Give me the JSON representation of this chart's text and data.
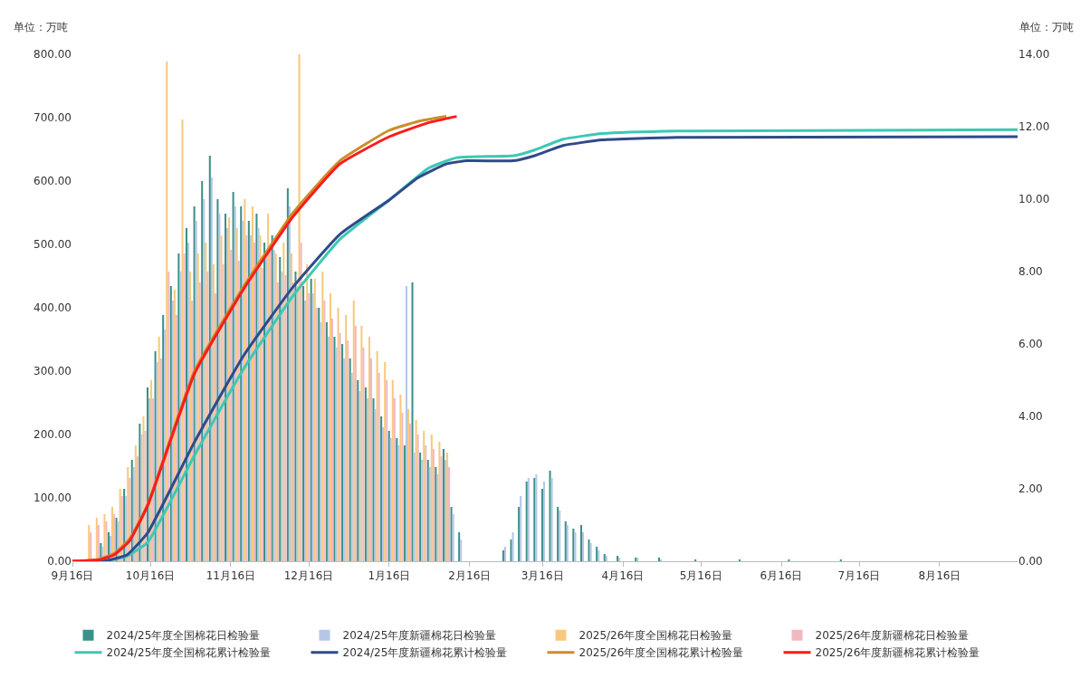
{
  "chart_data": {
    "type": "bar",
    "ylabel": "单位：万吨",
    "y2label": "单位：万吨",
    "legend": "bottom",
    "grid": false,
    "xlim": [
      "2025-09-16",
      "2026-09-15"
    ],
    "xticks": [
      {
        "value": "2025-09-16",
        "label": "9月16日"
      },
      {
        "value": "2025-10-16",
        "label": "10月16日"
      },
      {
        "value": "2025-11-16",
        "label": "11月16日"
      },
      {
        "value": "2025-12-16",
        "label": "12月16日"
      },
      {
        "value": "2026-01-16",
        "label": "1月16日"
      },
      {
        "value": "2026-02-16",
        "label": "2月16日"
      },
      {
        "value": "2026-03-16",
        "label": "3月16日"
      },
      {
        "value": "2026-04-16",
        "label": "4月16日"
      },
      {
        "value": "2026-05-16",
        "label": "5月16日"
      },
      {
        "value": "2026-06-16",
        "label": "6月16日"
      },
      {
        "value": "2026-07-16",
        "label": "7月16日"
      },
      {
        "value": "2026-08-16",
        "label": "8月16日"
      }
    ],
    "ylim": [
      0,
      800
    ],
    "yticks": [
      {
        "value": 0,
        "label": "0.00"
      },
      {
        "value": 100,
        "label": "100.00"
      },
      {
        "value": 200,
        "label": "200.00"
      },
      {
        "value": 300,
        "label": "300.00"
      },
      {
        "value": 400,
        "label": "400.00"
      },
      {
        "value": 500,
        "label": "500.00"
      },
      {
        "value": 600,
        "label": "600.00"
      },
      {
        "value": 700,
        "label": "700.00"
      },
      {
        "value": 800,
        "label": "800.00"
      }
    ],
    "y2lim": [
      0,
      14
    ],
    "y2ticks": [
      {
        "value": 0,
        "label": "0.00"
      },
      {
        "value": 2,
        "label": "2.00"
      },
      {
        "value": 4,
        "label": "4.00"
      },
      {
        "value": 6,
        "label": "6.00"
      },
      {
        "value": 8,
        "label": "8.00"
      },
      {
        "value": 10,
        "label": "10.00"
      },
      {
        "value": 12,
        "label": "12.00"
      },
      {
        "value": 14,
        "label": "14.00"
      }
    ],
    "series": [
      {
        "name": "2024/25年度全国棉花日检验量",
        "axis": "y2",
        "color": "#3a9188",
        "x": [
          "2025-09-28",
          "2025-10-01",
          "2025-10-04",
          "2025-10-07",
          "2025-10-10",
          "2025-10-13",
          "2025-10-16",
          "2025-10-19",
          "2025-10-22",
          "2025-10-25",
          "2025-10-28",
          "2025-10-31",
          "2025-11-03",
          "2025-11-06",
          "2025-11-09",
          "2025-11-12",
          "2025-11-15",
          "2025-11-18",
          "2025-11-21",
          "2025-11-24",
          "2025-11-27",
          "2025-11-30",
          "2025-12-03",
          "2025-12-06",
          "2025-12-09",
          "2025-12-12",
          "2025-12-15",
          "2025-12-18",
          "2025-12-21",
          "2025-12-24",
          "2025-12-27",
          "2025-12-30",
          "2026-01-02",
          "2026-01-05",
          "2026-01-08",
          "2026-01-11",
          "2026-01-14",
          "2026-01-17",
          "2026-01-20",
          "2026-01-23",
          "2026-01-26",
          "2026-01-29",
          "2026-02-01",
          "2026-02-04",
          "2026-02-07",
          "2026-02-10",
          "2026-02-13",
          "2026-03-02",
          "2026-03-05",
          "2026-03-08",
          "2026-03-11",
          "2026-03-14",
          "2026-03-17",
          "2026-03-20",
          "2026-03-23",
          "2026-03-26",
          "2026-03-29",
          "2026-04-01",
          "2026-04-04",
          "2026-04-07",
          "2026-04-10",
          "2026-04-15",
          "2026-04-22",
          "2026-05-01",
          "2026-05-15",
          "2026-06-01",
          "2026-06-20",
          "2026-07-10"
        ],
        "values": [
          0.5,
          0.8,
          1.2,
          2.0,
          2.8,
          3.8,
          4.8,
          5.8,
          6.8,
          7.6,
          8.5,
          9.2,
          9.8,
          10.5,
          11.2,
          10.0,
          9.6,
          10.2,
          9.8,
          9.4,
          9.6,
          8.8,
          9.0,
          8.4,
          10.3,
          8.0,
          7.6,
          7.8,
          7.0,
          6.6,
          6.2,
          6.0,
          5.6,
          5.0,
          4.8,
          4.5,
          4.0,
          3.6,
          3.4,
          3.2,
          7.7,
          3.0,
          2.8,
          2.6,
          3.1,
          1.5,
          0.8,
          0.3,
          0.6,
          1.5,
          2.2,
          2.3,
          2.0,
          2.5,
          1.5,
          1.1,
          0.9,
          1.0,
          0.6,
          0.4,
          0.2,
          0.15,
          0.1,
          0.1,
          0.05,
          0.05,
          0.03,
          0.03
        ]
      },
      {
        "name": "2024/25年度新疆棉花日检验量",
        "axis": "y2",
        "color": "#b4c7e7",
        "x": [
          "2025-09-28",
          "2025-10-01",
          "2025-10-04",
          "2025-10-07",
          "2025-10-10",
          "2025-10-13",
          "2025-10-16",
          "2025-10-19",
          "2025-10-22",
          "2025-10-25",
          "2025-10-28",
          "2025-10-31",
          "2025-11-03",
          "2025-11-06",
          "2025-11-09",
          "2025-11-12",
          "2025-11-15",
          "2025-11-18",
          "2025-11-21",
          "2025-11-24",
          "2025-11-27",
          "2025-11-30",
          "2025-12-03",
          "2025-12-06",
          "2025-12-09",
          "2025-12-12",
          "2025-12-15",
          "2025-12-18",
          "2025-12-21",
          "2025-12-24",
          "2025-12-27",
          "2025-12-30",
          "2026-01-02",
          "2026-01-05",
          "2026-01-08",
          "2026-01-11",
          "2026-01-14",
          "2026-01-17",
          "2026-01-20",
          "2026-01-23",
          "2026-01-26",
          "2026-01-29",
          "2026-02-01",
          "2026-02-04",
          "2026-02-07",
          "2026-02-10",
          "2026-02-13",
          "2026-03-02",
          "2026-03-05",
          "2026-03-08",
          "2026-03-11",
          "2026-03-14",
          "2026-03-17",
          "2026-03-20",
          "2026-03-23",
          "2026-03-26",
          "2026-03-29",
          "2026-04-01",
          "2026-04-04",
          "2026-04-07",
          "2026-04-10",
          "2026-04-15",
          "2026-04-22",
          "2026-05-01"
        ],
        "values": [
          0.4,
          0.7,
          1.1,
          1.8,
          2.6,
          3.5,
          4.5,
          5.5,
          6.4,
          7.2,
          8.0,
          8.8,
          9.4,
          10.0,
          10.6,
          9.6,
          9.2,
          9.8,
          9.4,
          9.0,
          9.2,
          8.4,
          8.6,
          8.0,
          9.8,
          7.6,
          7.2,
          7.4,
          6.6,
          6.2,
          5.9,
          5.6,
          5.2,
          4.7,
          4.5,
          4.2,
          3.7,
          3.4,
          3.2,
          7.6,
          3.0,
          2.8,
          2.6,
          2.4,
          2.8,
          1.3,
          0.6,
          0.4,
          0.8,
          1.8,
          2.3,
          2.4,
          2.2,
          2.3,
          1.4,
          1.0,
          0.8,
          0.8,
          0.5,
          0.3,
          0.15,
          0.1,
          0.1,
          0.05
        ]
      },
      {
        "name": "2025/26年度全国棉花日检验量",
        "axis": "y2",
        "color": "#f7c97c",
        "x": [
          "2025-09-22",
          "2025-09-25",
          "2025-09-28",
          "2025-10-01",
          "2025-10-04",
          "2025-10-07",
          "2025-10-10",
          "2025-10-13",
          "2025-10-16",
          "2025-10-19",
          "2025-10-22",
          "2025-10-25",
          "2025-10-28",
          "2025-10-31",
          "2025-11-03",
          "2025-11-06",
          "2025-11-09",
          "2025-11-12",
          "2025-11-15",
          "2025-11-18",
          "2025-11-21",
          "2025-11-24",
          "2025-11-27",
          "2025-11-30",
          "2025-12-03",
          "2025-12-06",
          "2025-12-09",
          "2025-12-12",
          "2025-12-15",
          "2025-12-18",
          "2025-12-21",
          "2025-12-24",
          "2025-12-27",
          "2025-12-30",
          "2026-01-02",
          "2026-01-05",
          "2026-01-08",
          "2026-01-11",
          "2026-01-14",
          "2026-01-17",
          "2026-01-20",
          "2026-01-23",
          "2026-01-26",
          "2026-01-29",
          "2026-02-01",
          "2026-02-04",
          "2026-02-07"
        ],
        "values": [
          1.0,
          1.2,
          1.3,
          1.5,
          2.0,
          2.6,
          3.2,
          4.0,
          5.0,
          6.2,
          13.8,
          7.5,
          12.2,
          8.0,
          8.5,
          8.8,
          8.2,
          9.0,
          9.5,
          9.2,
          10.0,
          9.8,
          9.0,
          9.6,
          8.5,
          8.8,
          8.5,
          14.0,
          8.2,
          7.8,
          8.0,
          7.4,
          7.0,
          6.8,
          7.2,
          6.5,
          6.2,
          5.8,
          5.5,
          5.0,
          4.6,
          4.2,
          3.9,
          3.6,
          3.5,
          3.3,
          3.0
        ]
      },
      {
        "name": "2025/26年度新疆棉花日检验量",
        "axis": "y2",
        "color": "#f2b8c0",
        "x": [
          "2025-09-22",
          "2025-09-25",
          "2025-09-28",
          "2025-10-01",
          "2025-10-04",
          "2025-10-07",
          "2025-10-10",
          "2025-10-13",
          "2025-10-16",
          "2025-10-19",
          "2025-10-22",
          "2025-10-25",
          "2025-10-28",
          "2025-10-31",
          "2025-11-03",
          "2025-11-06",
          "2025-11-09",
          "2025-11-12",
          "2025-11-15",
          "2025-11-18",
          "2025-11-21",
          "2025-11-24",
          "2025-11-27",
          "2025-11-30",
          "2025-12-03",
          "2025-12-06",
          "2025-12-09",
          "2025-12-12",
          "2025-12-15",
          "2025-12-18",
          "2025-12-21",
          "2025-12-24",
          "2025-12-27",
          "2025-12-30",
          "2026-01-02",
          "2026-01-05",
          "2026-01-08",
          "2026-01-11",
          "2026-01-14",
          "2026-01-17",
          "2026-01-20",
          "2026-01-23",
          "2026-01-26",
          "2026-01-29",
          "2026-02-01",
          "2026-02-04",
          "2026-02-07"
        ],
        "values": [
          0.8,
          1.0,
          1.1,
          1.3,
          1.8,
          2.3,
          2.9,
          3.6,
          4.5,
          5.6,
          8.0,
          6.8,
          8.5,
          7.2,
          7.7,
          8.0,
          7.4,
          8.2,
          8.6,
          8.3,
          9.0,
          8.8,
          8.1,
          8.6,
          7.7,
          7.9,
          7.7,
          8.8,
          7.4,
          7.0,
          7.2,
          6.7,
          6.3,
          6.1,
          6.5,
          5.9,
          5.6,
          5.2,
          5.0,
          4.5,
          4.1,
          3.8,
          3.5,
          3.2,
          3.1,
          2.9,
          2.6
        ]
      },
      {
        "name": "2024/25年度全国棉花累计检验量",
        "type": "line",
        "color": "#3cc8b4",
        "x": [
          "2025-09-16",
          "2025-09-28",
          "2025-10-07",
          "2025-10-15",
          "2025-11-02",
          "2025-11-21",
          "2025-12-10",
          "2025-12-28",
          "2026-01-16",
          "2026-01-31",
          "2026-02-11",
          "2026-03-05",
          "2026-03-13",
          "2026-03-24",
          "2026-04-08",
          "2026-05-07",
          "2026-09-15"
        ],
        "values": [
          0,
          0,
          8,
          30,
          167,
          304,
          419,
          508,
          570,
          620,
          637,
          640,
          649,
          666,
          675,
          679,
          681
        ]
      },
      {
        "name": "2024/25年度新疆棉花累计检验量",
        "type": "line",
        "color": "#2f4a8a",
        "x": [
          "2025-09-16",
          "2025-09-28",
          "2025-10-07",
          "2025-10-15",
          "2025-11-02",
          "2025-11-21",
          "2025-12-10",
          "2025-12-28",
          "2026-01-16",
          "2026-01-27",
          "2026-02-07",
          "2026-02-15",
          "2026-03-05",
          "2026-03-13",
          "2026-03-24",
          "2026-04-08",
          "2026-05-07",
          "2026-09-15"
        ],
        "values": [
          0,
          0,
          10,
          45,
          188,
          325,
          433,
          516,
          570,
          605,
          627,
          632,
          632,
          640,
          656,
          665,
          669,
          670
        ]
      },
      {
        "name": "2025/26年度全国棉花累计检验量",
        "type": "line",
        "color": "#c8902a",
        "x": [
          "2025-09-16",
          "2025-09-26",
          "2025-10-02",
          "2025-10-08",
          "2025-10-15",
          "2025-11-02",
          "2025-11-21",
          "2025-12-10",
          "2025-12-28",
          "2026-01-16",
          "2026-01-27",
          "2026-02-07"
        ],
        "values": [
          0,
          3,
          12,
          35,
          90,
          300,
          434,
          550,
          632,
          680,
          694,
          702
        ]
      },
      {
        "name": "2025/26年度新疆棉花累计检验量",
        "type": "line",
        "color": "#ff1a1a",
        "x": [
          "2025-09-16",
          "2025-09-26",
          "2025-10-02",
          "2025-10-08",
          "2025-10-15",
          "2025-11-02",
          "2025-11-21",
          "2025-12-10",
          "2025-12-28",
          "2026-01-16",
          "2026-01-31",
          "2026-02-11"
        ],
        "values": [
          0,
          2,
          10,
          32,
          88,
          296,
          430,
          544,
          627,
          670,
          692,
          702
        ]
      }
    ]
  }
}
